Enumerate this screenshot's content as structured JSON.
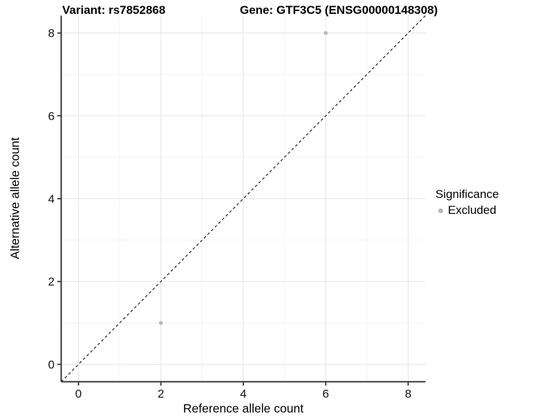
{
  "header": {
    "variant_title": "Variant: rs7852868",
    "gene_title": "Gene: GTF3C5 (ENSG00000148308)"
  },
  "legend": {
    "title": "Significance",
    "items": [
      {
        "label": "Excluded",
        "color": "#b8b8b8"
      }
    ]
  },
  "chart_data": {
    "type": "scatter",
    "title": "Variant: rs7852868   Gene: GTF3C5 (ENSG00000148308)",
    "xlabel": "Reference allele count",
    "ylabel": "Alternative allele count",
    "xlim": [
      -0.42,
      8.42
    ],
    "ylim": [
      -0.42,
      8.42
    ],
    "x_ticks": [
      0,
      2,
      4,
      6,
      8
    ],
    "y_ticks": [
      0,
      2,
      4,
      6,
      8
    ],
    "x_minor": [
      1,
      3,
      5,
      7
    ],
    "y_minor": [
      1,
      3,
      5,
      7
    ],
    "grid": true,
    "legend_position": "right",
    "series": [
      {
        "name": "Excluded",
        "color": "#b8b8b8",
        "points": [
          {
            "x": 6,
            "y": 8
          },
          {
            "x": 2,
            "y": 1
          }
        ]
      }
    ],
    "reference_line": {
      "kind": "identity",
      "style": "dashed",
      "color": "#1a1a1a"
    },
    "style": {
      "grid_major": "#e7e7e7",
      "grid_minor": "#f2f2f2",
      "axis_line": "#333333",
      "tick_color": "#333333",
      "point_radius": 2.8
    }
  }
}
